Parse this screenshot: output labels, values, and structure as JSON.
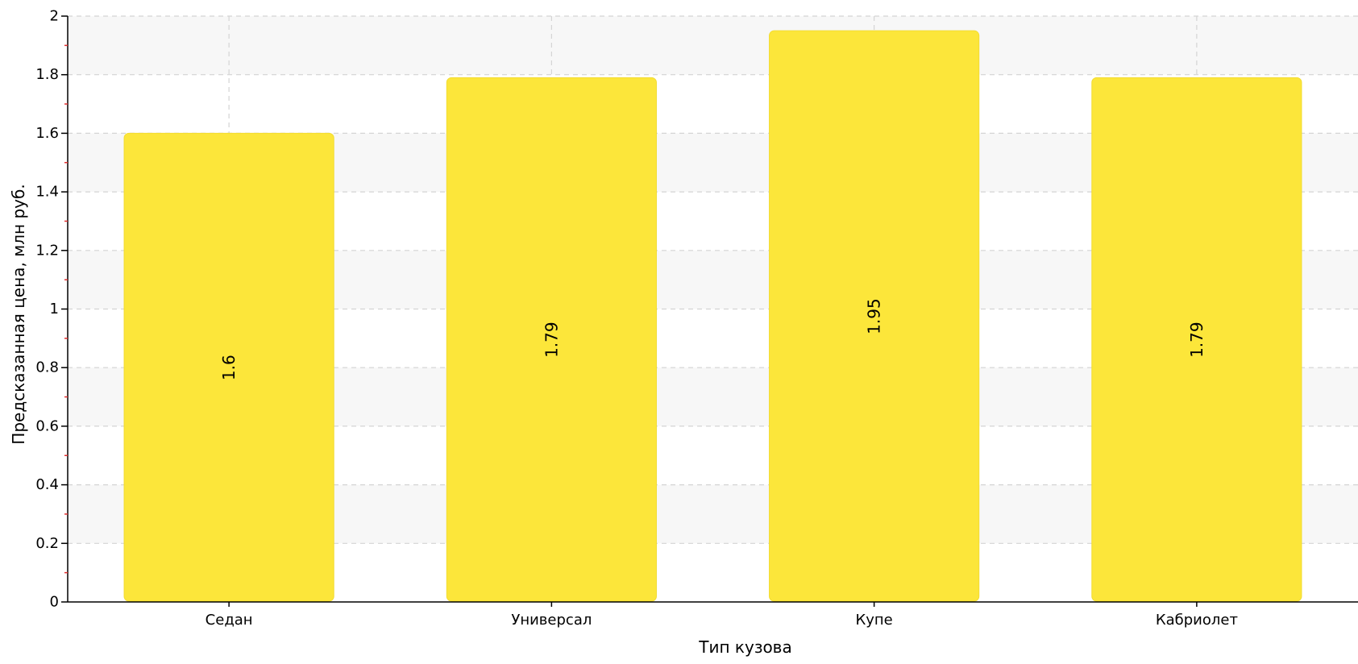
{
  "chart_data": {
    "type": "bar",
    "title": "",
    "xlabel": "Тип кузова",
    "ylabel": "Предсказанная цена, млн руб.",
    "categories": [
      "Седан",
      "Универсал",
      "Купе",
      "Кабриолет"
    ],
    "values": [
      1.6,
      1.79,
      1.95,
      1.79
    ],
    "data_labels": [
      "1.6",
      "1.79",
      "1.95",
      "1.79"
    ],
    "ylim": [
      0,
      2
    ],
    "yticks": [
      0,
      0.2,
      0.4,
      0.6,
      0.8,
      1,
      1.2,
      1.4,
      1.6,
      1.8,
      2
    ],
    "ytick_labels": [
      "0",
      "0.2",
      "0.4",
      "0.6",
      "0.8",
      "1",
      "1.2",
      "1.4",
      "1.6",
      "1.8",
      "2"
    ],
    "grid": true,
    "legend": "none",
    "colors": {
      "bar": "#fce63a",
      "bar_edge": "#f2dc30",
      "band": "#f7f7f7",
      "grid": "#d4d4d4",
      "axis": "#000000",
      "minor_tick": "#e03030"
    }
  }
}
